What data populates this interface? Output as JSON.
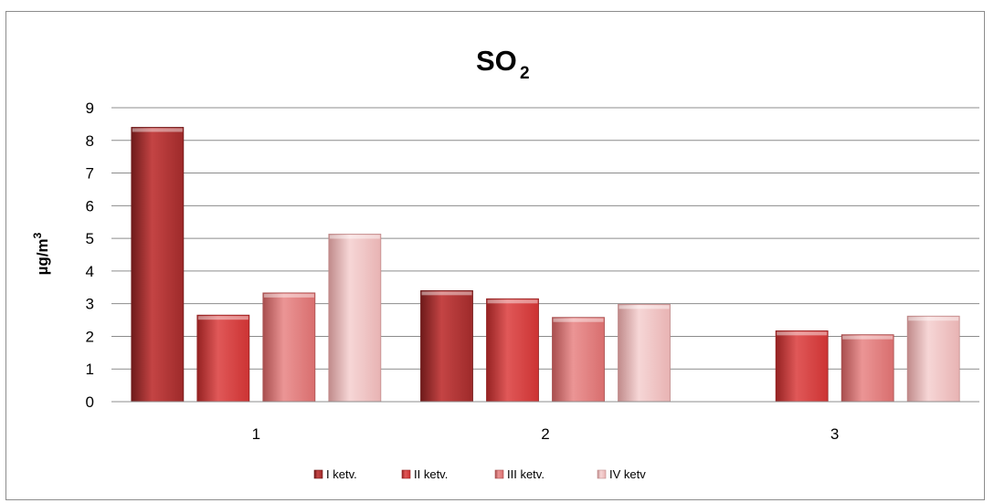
{
  "chart_data": {
    "type": "bar",
    "title": "SO",
    "title_subscript": "2",
    "ylabel": "µg/m",
    "ylabel_superscript": "3",
    "xlabel": "",
    "categories": [
      "1",
      "2",
      "3"
    ],
    "ylim": [
      0,
      9
    ],
    "yticks": [
      "0",
      "1",
      "2",
      "3",
      "4",
      "5",
      "6",
      "7",
      "8",
      "9"
    ],
    "grid": true,
    "legend_position": "bottom",
    "series": [
      {
        "name": "I ketv.",
        "values": [
          8.4,
          3.4,
          null
        ],
        "color": "#9e2a2a",
        "color_light": "#c44444",
        "color_dark": "#6e1a1a"
      },
      {
        "name": "II ketv.",
        "values": [
          2.65,
          3.15,
          2.17
        ],
        "color": "#cc3333",
        "color_light": "#e05858",
        "color_dark": "#952222"
      },
      {
        "name": "III ketv.",
        "values": [
          3.33,
          2.58,
          2.05
        ],
        "color": "#d86e6e",
        "color_light": "#eb9595",
        "color_dark": "#a84e4e"
      },
      {
        "name": "IV ketv",
        "values": [
          5.13,
          2.98,
          2.62
        ],
        "color": "#e8b3b3",
        "color_light": "#f6d6d6",
        "color_dark": "#c08a8a"
      }
    ]
  }
}
